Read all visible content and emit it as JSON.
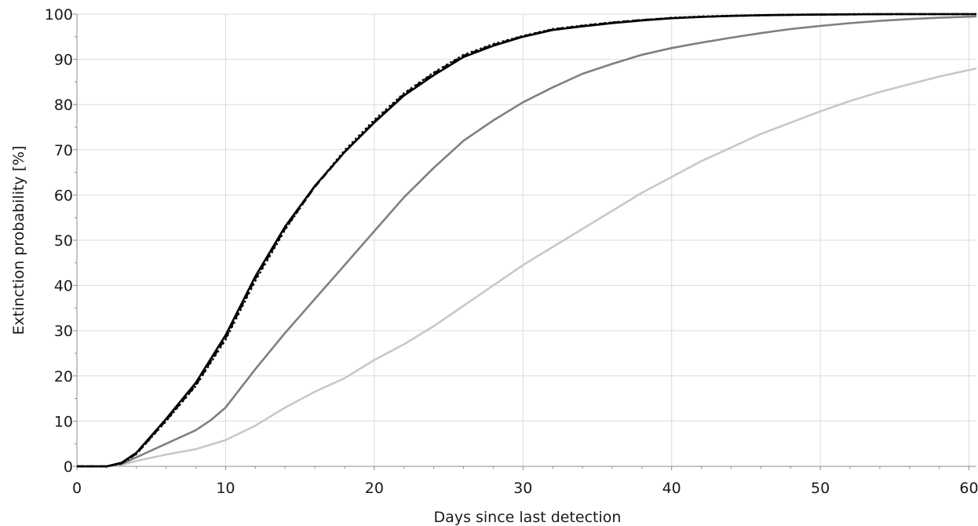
{
  "chart_data": {
    "type": "line",
    "title": "",
    "xlabel": "Days since last detection",
    "ylabel": "Extinction probability [%]",
    "xlim": [
      0,
      60.5
    ],
    "ylim": [
      0,
      100
    ],
    "x_ticks": [
      0,
      10,
      20,
      30,
      40,
      50,
      60
    ],
    "y_ticks": [
      0,
      10,
      20,
      30,
      40,
      50,
      60,
      70,
      80,
      90,
      100
    ],
    "grid": true,
    "legend": "none",
    "series": [
      {
        "style": "solid",
        "color": "#000000",
        "x": [
          0,
          2,
          3,
          4,
          6,
          8,
          10,
          12,
          14,
          16,
          18,
          20,
          22,
          24,
          26,
          28,
          30,
          32,
          34,
          36,
          38,
          40,
          42,
          44,
          46,
          48,
          50,
          52,
          55,
          60.5
        ],
        "y": [
          0,
          0,
          0.8,
          3,
          10.5,
          18.5,
          29,
          42,
          53,
          62,
          69.5,
          76,
          82,
          86.5,
          90.5,
          93,
          95,
          96.5,
          97.3,
          98,
          98.6,
          99.1,
          99.4,
          99.6,
          99.75,
          99.85,
          99.9,
          99.95,
          100,
          100
        ]
      },
      {
        "style": "dashed",
        "color": "#000000",
        "x": [
          0,
          2,
          3,
          4,
          6,
          8,
          10,
          12,
          14,
          16,
          18,
          20,
          22,
          24,
          26,
          28,
          30,
          32,
          34,
          36,
          38,
          40,
          42,
          44,
          46,
          48,
          50,
          52,
          55,
          60.5
        ],
        "y": [
          0,
          0,
          0.7,
          2.8,
          10.2,
          18,
          28.4,
          41.5,
          52.6,
          61.8,
          69.5,
          76.2,
          82.3,
          86.9,
          90.8,
          93.2,
          95.1,
          96.6,
          97.4,
          98.1,
          98.7,
          99.1,
          99.4,
          99.6,
          99.75,
          99.85,
          99.9,
          99.95,
          100,
          100
        ]
      },
      {
        "style": "dotted",
        "color": "#000000",
        "x": [
          0,
          2,
          3,
          4,
          6,
          8,
          10,
          12,
          14,
          16,
          18,
          20,
          22,
          24,
          26,
          28,
          30,
          32,
          34,
          36,
          38,
          40,
          42,
          44,
          46,
          48,
          50,
          52,
          55,
          60.5
        ],
        "y": [
          0,
          0,
          0.6,
          2.7,
          10,
          17.8,
          28,
          41,
          52.3,
          61.9,
          69.9,
          76.6,
          82.5,
          87.1,
          91,
          93.4,
          95.2,
          96.7,
          97.5,
          98.2,
          98.7,
          99.2,
          99.5,
          99.65,
          99.8,
          99.9,
          99.95,
          100,
          100,
          100
        ]
      },
      {
        "style": "solid",
        "color": "#7f7f7f",
        "x": [
          0,
          2,
          3,
          4,
          6,
          8,
          9,
          10,
          12,
          14,
          16,
          18,
          20,
          22,
          24,
          26,
          28,
          30,
          32,
          34,
          36,
          38,
          40,
          42,
          44,
          46,
          48,
          50,
          52,
          54,
          56,
          58,
          60.5
        ],
        "y": [
          0,
          0,
          0.5,
          2,
          5,
          8,
          10.2,
          13,
          21.5,
          29.5,
          37,
          44.5,
          52,
          59.5,
          66,
          72,
          76.5,
          80.5,
          83.8,
          86.8,
          89,
          91,
          92.5,
          93.7,
          94.8,
          95.8,
          96.7,
          97.4,
          98,
          98.5,
          98.9,
          99.2,
          99.5
        ]
      },
      {
        "style": "solid",
        "color": "#c8c8c8",
        "x": [
          0,
          2,
          3,
          4,
          6,
          8,
          10,
          12,
          14,
          16,
          18,
          20,
          22,
          24,
          26,
          28,
          30,
          32,
          34,
          36,
          38,
          40,
          42,
          44,
          46,
          48,
          50,
          52,
          54,
          56,
          58,
          60.5
        ],
        "y": [
          0,
          0,
          0.3,
          1.2,
          2.6,
          3.8,
          5.8,
          9,
          13,
          16.5,
          19.5,
          23.5,
          27,
          31,
          35.5,
          40,
          44.5,
          48.5,
          52.5,
          56.5,
          60.5,
          64,
          67.5,
          70.5,
          73.5,
          76,
          78.5,
          80.8,
          82.8,
          84.5,
          86.2,
          88
        ]
      }
    ]
  }
}
